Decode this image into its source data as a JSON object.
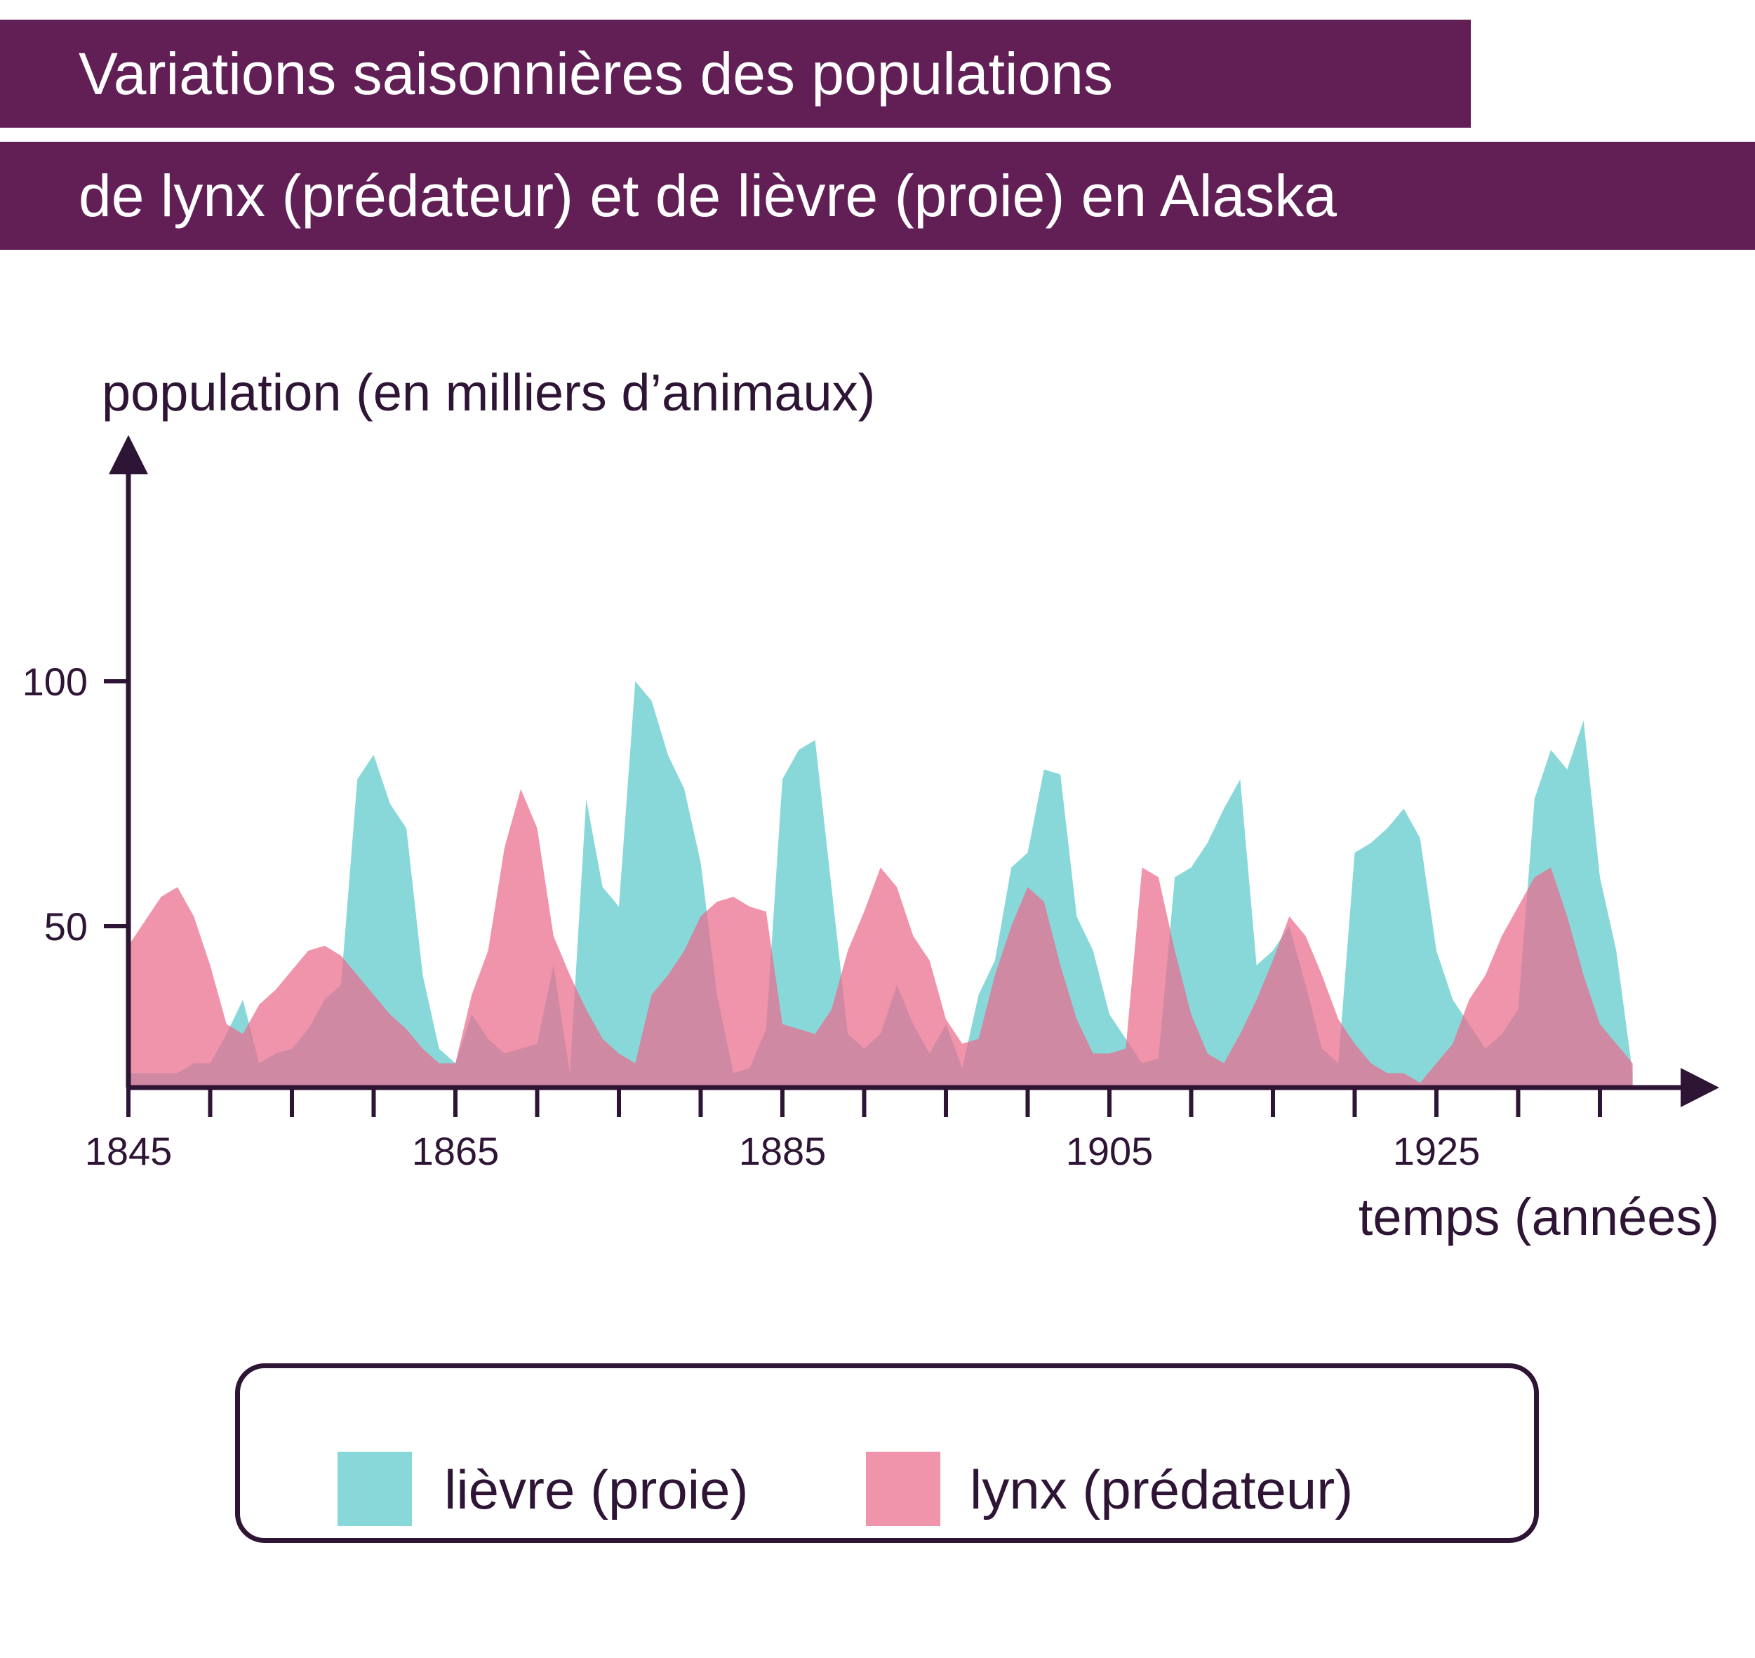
{
  "titles": {
    "line1": "Variations saisonnières des populations",
    "line2": "de lynx (prédateur) et de lièvre (proie) en Alaska"
  },
  "colors": {
    "band": "#611f56",
    "axis": "#2f1535",
    "hare": "#5ac9cb",
    "lynx": "#ea6b8c"
  },
  "chart_data": {
    "type": "area",
    "title": "Variations saisonnières des populations de lynx (prédateur) et de lièvre (proie) en Alaska",
    "ylabel": "population (en milliers d’animaux)",
    "xlabel": "temps (années)",
    "xlim": [
      1845,
      1938
    ],
    "ylim": [
      17,
      145
    ],
    "x_ticks": [
      "1845",
      "1865",
      "1885",
      "1905",
      "1925"
    ],
    "y_ticks": [
      "100",
      "50"
    ],
    "legend_position": "bottom",
    "grid": false,
    "series": [
      {
        "name": "lièvre (proie)",
        "color": "#5ac9cb",
        "x": [
          1845,
          1846,
          1847,
          1848,
          1849,
          1850,
          1851,
          1852,
          1853,
          1854,
          1855,
          1856,
          1857,
          1858,
          1859,
          1860,
          1861,
          1862,
          1863,
          1864,
          1865,
          1866,
          1867,
          1868,
          1869,
          1870,
          1871,
          1872,
          1873,
          1874,
          1875,
          1876,
          1877,
          1878,
          1879,
          1880,
          1881,
          1882,
          1883,
          1884,
          1885,
          1886,
          1887,
          1888,
          1889,
          1890,
          1891,
          1892,
          1893,
          1894,
          1895,
          1896,
          1897,
          1898,
          1899,
          1900,
          1901,
          1902,
          1903,
          1904,
          1905,
          1906,
          1907,
          1908,
          1909,
          1910,
          1911,
          1912,
          1913,
          1914,
          1915,
          1916,
          1917,
          1918,
          1919,
          1920,
          1921,
          1922,
          1923,
          1924,
          1925,
          1926,
          1927,
          1928,
          1929,
          1930,
          1931,
          1932,
          1933,
          1934,
          1935,
          1936,
          1937
        ],
        "values": [
          20,
          20,
          20,
          20,
          22,
          22,
          28,
          35,
          22,
          24,
          25,
          29,
          35,
          38,
          80,
          85,
          75,
          70,
          40,
          25,
          22,
          32,
          27,
          24,
          25,
          26,
          42,
          20,
          76,
          58,
          54,
          100,
          96,
          85,
          78,
          63,
          36,
          20,
          21,
          29,
          80,
          86,
          88,
          58,
          28,
          25,
          28,
          38,
          30,
          24,
          30,
          21,
          36,
          43,
          62,
          65,
          82,
          81,
          52,
          45,
          32,
          27,
          22,
          23,
          60,
          62,
          67,
          74,
          80,
          42,
          45,
          50,
          38,
          25,
          22,
          65,
          67,
          70,
          74,
          68,
          45,
          35,
          30,
          25,
          28,
          33,
          76,
          86,
          82,
          92,
          60,
          45,
          20
        ]
      },
      {
        "name": "lynx (prédateur)",
        "color": "#ea6b8c",
        "x": [
          1845,
          1846,
          1847,
          1848,
          1849,
          1850,
          1851,
          1852,
          1853,
          1854,
          1855,
          1856,
          1857,
          1858,
          1859,
          1860,
          1861,
          1862,
          1863,
          1864,
          1865,
          1866,
          1867,
          1868,
          1869,
          1870,
          1871,
          1872,
          1873,
          1874,
          1875,
          1876,
          1877,
          1878,
          1879,
          1880,
          1881,
          1882,
          1883,
          1884,
          1885,
          1886,
          1887,
          1888,
          1889,
          1890,
          1891,
          1892,
          1893,
          1894,
          1895,
          1896,
          1897,
          1898,
          1899,
          1900,
          1901,
          1902,
          1903,
          1904,
          1905,
          1906,
          1907,
          1908,
          1909,
          1910,
          1911,
          1912,
          1913,
          1914,
          1915,
          1916,
          1917,
          1918,
          1919,
          1920,
          1921,
          1922,
          1923,
          1924,
          1925,
          1926,
          1927,
          1928,
          1929,
          1930,
          1931,
          1932,
          1933,
          1934,
          1935,
          1936,
          1937
        ],
        "values": [
          46,
          51,
          56,
          58,
          52,
          42,
          30,
          28,
          34,
          37,
          41,
          45,
          46,
          44,
          40,
          36,
          32,
          29,
          25,
          22,
          22,
          36,
          45,
          66,
          78,
          70,
          48,
          40,
          33,
          27,
          24,
          22,
          36,
          40,
          45,
          52,
          55,
          56,
          54,
          53,
          30,
          29,
          28,
          33,
          45,
          53,
          62,
          58,
          48,
          43,
          31,
          26,
          27,
          40,
          50,
          58,
          55,
          42,
          31,
          24,
          24,
          25,
          62,
          60,
          45,
          32,
          24,
          22,
          28,
          35,
          43,
          52,
          48,
          40,
          31,
          26,
          22,
          20,
          20,
          18,
          22,
          26,
          35,
          40,
          48,
          54,
          60,
          62,
          52,
          40,
          30,
          26,
          22
        ]
      }
    ]
  },
  "legend": {
    "hare_label": "lièvre (proie)",
    "lynx_label": "lynx (prédateur)"
  }
}
